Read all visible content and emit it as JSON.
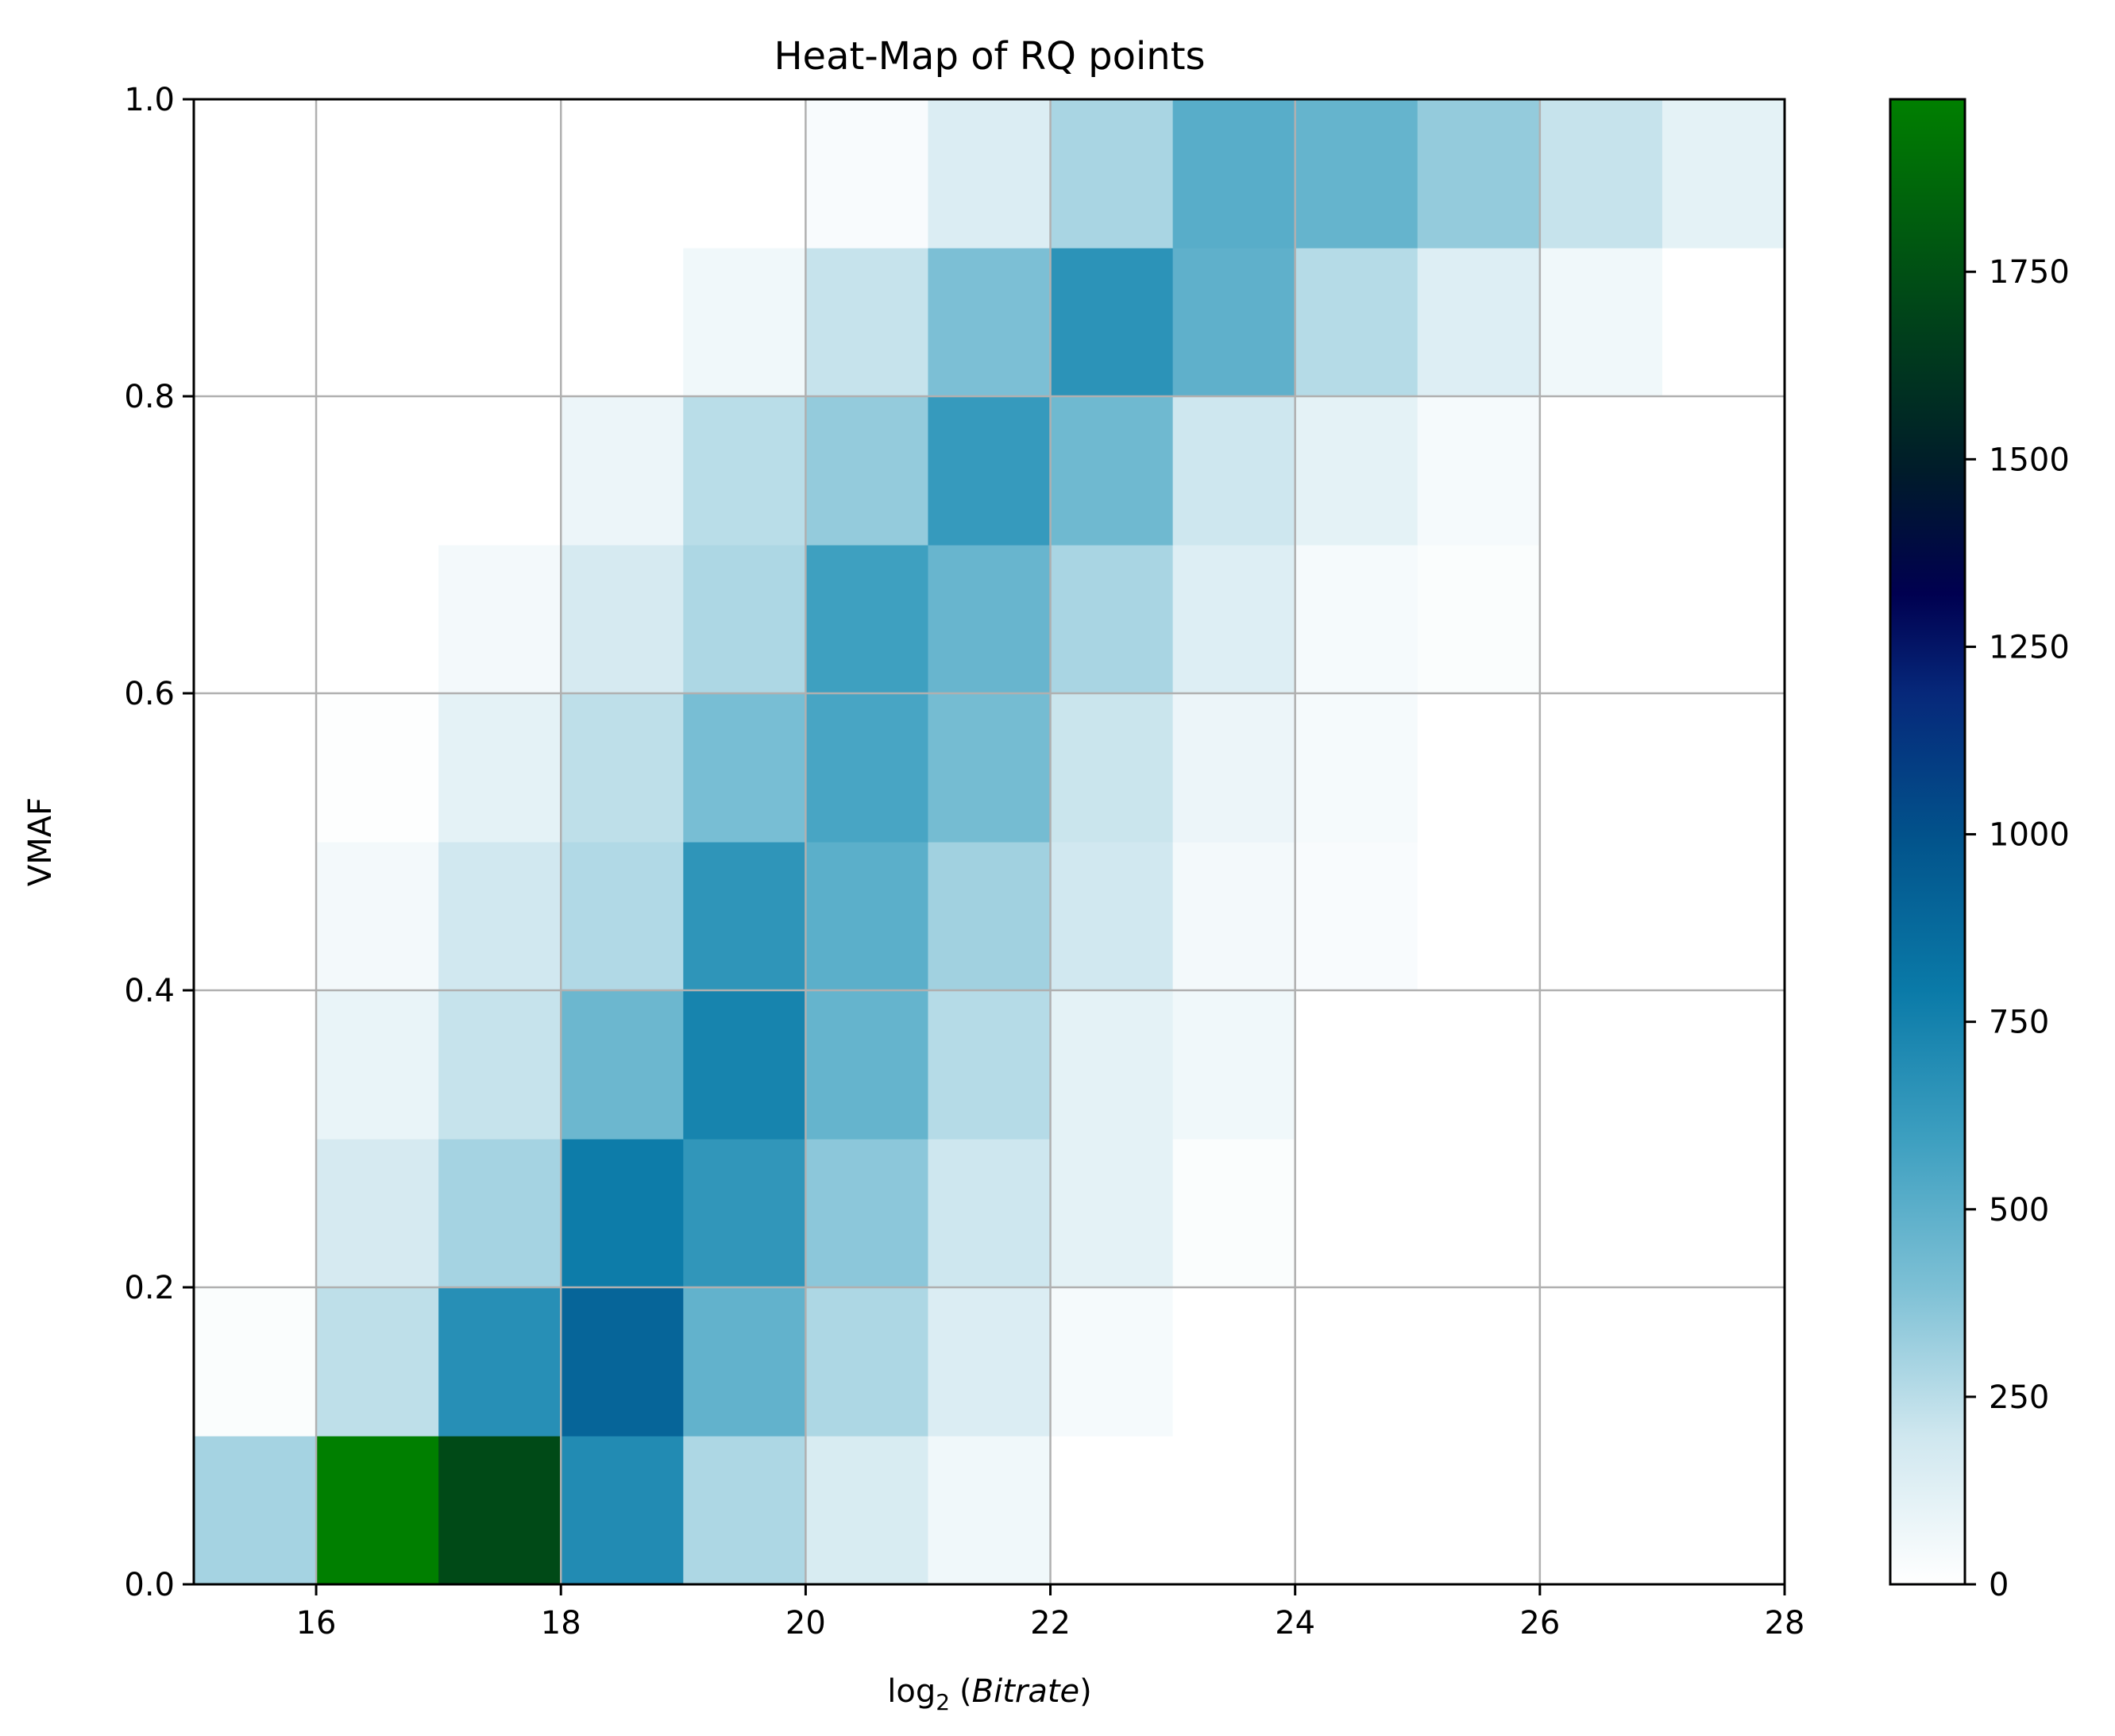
{
  "chart_data": {
    "type": "heatmap",
    "title": "Heat-Map of RQ points",
    "xlabel": {
      "prefix": "log",
      "subscript": "2",
      "open": "(",
      "variable": "Bitrate",
      "close": ")"
    },
    "ylabel": "VMAF",
    "xlim": [
      15,
      28
    ],
    "ylim": [
      0,
      1
    ],
    "x_edges": [
      15,
      16,
      17,
      18,
      19,
      20,
      21,
      22,
      23,
      24,
      25,
      26,
      27,
      28
    ],
    "y_edges": [
      0,
      0.1,
      0.2,
      0.3,
      0.4,
      0.5,
      0.6,
      0.7,
      0.8,
      0.9,
      1.0
    ],
    "x_ticks": [
      "16",
      "18",
      "20",
      "22",
      "24",
      "26",
      "28"
    ],
    "y_ticks": [
      "0.0",
      "0.2",
      "0.4",
      "0.6",
      "0.8",
      "1.0"
    ],
    "grid": true,
    "colormap": "ocean_r",
    "color_range": [
      0,
      1980
    ],
    "colorbar_ticks": [
      "0",
      "250",
      "500",
      "750",
      "1000",
      "1250",
      "1500",
      "1750"
    ],
    "counts": [
      [
        300,
        1980,
        1720,
        700,
        280,
        160,
        60,
        0,
        0,
        0,
        0,
        0,
        0
      ],
      [
        20,
        240,
        680,
        900,
        480,
        280,
        150,
        40,
        0,
        0,
        0,
        0,
        0
      ],
      [
        0,
        170,
        300,
        780,
        640,
        360,
        200,
        110,
        20,
        0,
        0,
        0,
        0
      ],
      [
        0,
        90,
        220,
        450,
        740,
        470,
        260,
        110,
        60,
        0,
        0,
        0,
        0
      ],
      [
        0,
        50,
        190,
        270,
        650,
        500,
        310,
        190,
        50,
        30,
        0,
        0,
        0
      ],
      [
        0,
        10,
        110,
        240,
        410,
        560,
        420,
        210,
        80,
        40,
        0,
        0,
        0
      ],
      [
        0,
        0,
        50,
        170,
        280,
        590,
        460,
        290,
        140,
        40,
        20,
        0,
        0
      ],
      [
        0,
        0,
        0,
        80,
        250,
        340,
        620,
        440,
        200,
        110,
        40,
        0,
        0
      ],
      [
        0,
        0,
        0,
        0,
        60,
        220,
        400,
        660,
        490,
        260,
        140,
        60,
        0
      ],
      [
        0,
        0,
        0,
        0,
        0,
        30,
        150,
        290,
        510,
        470,
        340,
        220,
        110
      ]
    ]
  }
}
